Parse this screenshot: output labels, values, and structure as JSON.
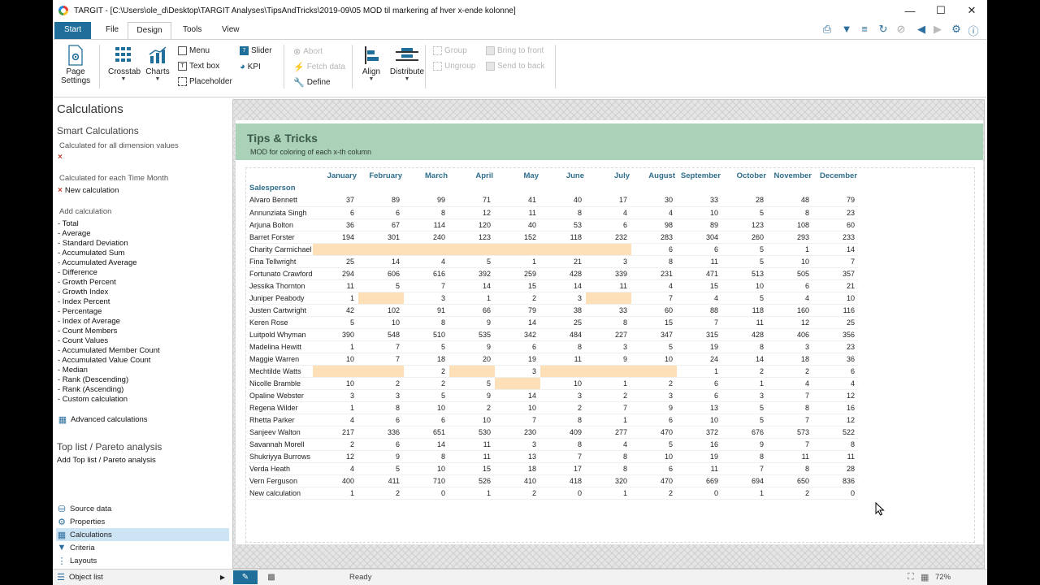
{
  "window": {
    "title": "TARGIT - [C:\\Users\\ole_d\\Desktop\\TARGIT Analyses\\TipsAndTricks\\2019-09\\05 MOD til markering af hver x-ende kolonne]"
  },
  "tabs": {
    "start": "Start",
    "file": "File",
    "design": "Design",
    "tools": "Tools",
    "view": "View"
  },
  "ribbon": {
    "page_settings": "Page Settings",
    "crosstab": "Crosstab",
    "charts": "Charts",
    "menu": "Menu",
    "text_box": "Text box",
    "placeholder": "Placeholder",
    "slider": "Slider",
    "kpi": "KPI",
    "abort": "Abort",
    "fetch_data": "Fetch data",
    "define": "Define",
    "align": "Align",
    "distribute": "Distribute",
    "group": "Group",
    "ungroup": "Ungroup",
    "bring_to_front": "Bring to front",
    "send_to_back": "Send to back"
  },
  "left_panel": {
    "heading": "Calculations",
    "smart_calculations": "Smart Calculations",
    "calc_all_dims": "Calculated for all dimension values",
    "calc_each_month": "Calculated for each Time Month",
    "new_calculation": "New calculation",
    "add_calculation": "Add calculation",
    "calc_items": [
      "- Total",
      "- Average",
      "- Standard Deviation",
      "- Accumulated Sum",
      "- Accumulated Average",
      "- Difference",
      "- Growth Percent",
      "- Growth Index",
      "- Index Percent",
      "- Percentage",
      "- Index of Average",
      "- Count Members",
      "- Count Values",
      "- Accumulated Member Count",
      "- Accumulated Value Count",
      "- Median",
      "- Rank (Descending)",
      "- Rank (Ascending)",
      "- Custom calculation"
    ],
    "advanced_calculations": "Advanced calculations",
    "toplist_heading": "Top list / Pareto analysis",
    "add_toplist": "Add Top list / Pareto analysis",
    "bottom_nav": [
      "Source data",
      "Properties",
      "Calculations",
      "Criteria",
      "Layouts"
    ],
    "object_list": "Object list"
  },
  "report": {
    "title": "Tips & Tricks",
    "subtitle": "MOD for coloring of each x-th column",
    "row_header": "Salesperson",
    "months": [
      "January",
      "February",
      "March",
      "April",
      "May",
      "June",
      "July",
      "August",
      "September",
      "October",
      "November",
      "December"
    ],
    "rows": [
      {
        "name": "Alvaro Bennett",
        "v": [
          "37",
          "89",
          "99",
          "71",
          "41",
          "40",
          "17",
          "30",
          "33",
          "28",
          "48",
          "79"
        ]
      },
      {
        "name": "Annunziata Singh",
        "v": [
          "6",
          "6",
          "8",
          "12",
          "11",
          "8",
          "4",
          "4",
          "10",
          "5",
          "8",
          "23"
        ]
      },
      {
        "name": "Arjuna Bolton",
        "v": [
          "36",
          "67",
          "114",
          "120",
          "40",
          "53",
          "6",
          "98",
          "89",
          "123",
          "108",
          "60"
        ]
      },
      {
        "name": "Barret Forster",
        "v": [
          "194",
          "301",
          "240",
          "123",
          "152",
          "118",
          "232",
          "283",
          "304",
          "260",
          "293",
          "233"
        ]
      },
      {
        "name": "Charity Carmichael",
        "v": [
          "",
          "",
          "",
          "",
          "",
          "",
          "",
          "6",
          "6",
          "5",
          "1",
          "14"
        ]
      },
      {
        "name": "Fina Tellwright",
        "v": [
          "25",
          "14",
          "4",
          "5",
          "1",
          "21",
          "3",
          "8",
          "11",
          "5",
          "10",
          "7"
        ]
      },
      {
        "name": "Fortunato Crawford",
        "v": [
          "294",
          "606",
          "616",
          "392",
          "259",
          "428",
          "339",
          "231",
          "471",
          "513",
          "505",
          "357"
        ]
      },
      {
        "name": "Jessika Thornton",
        "v": [
          "11",
          "5",
          "7",
          "14",
          "15",
          "14",
          "11",
          "4",
          "15",
          "10",
          "6",
          "21"
        ]
      },
      {
        "name": "Juniper Peabody",
        "v": [
          "1",
          "",
          "3",
          "1",
          "2",
          "3",
          "",
          "7",
          "4",
          "5",
          "4",
          "10"
        ]
      },
      {
        "name": "Justen Cartwright",
        "v": [
          "42",
          "102",
          "91",
          "66",
          "79",
          "38",
          "33",
          "60",
          "88",
          "118",
          "160",
          "116"
        ]
      },
      {
        "name": "Keren Rose",
        "v": [
          "5",
          "10",
          "8",
          "9",
          "14",
          "25",
          "8",
          "15",
          "7",
          "11",
          "12",
          "25"
        ]
      },
      {
        "name": "Luitpold Whyman",
        "v": [
          "390",
          "548",
          "510",
          "535",
          "342",
          "484",
          "227",
          "347",
          "315",
          "428",
          "406",
          "356"
        ]
      },
      {
        "name": "Madelina Hewitt",
        "v": [
          "1",
          "7",
          "5",
          "9",
          "6",
          "8",
          "3",
          "5",
          "19",
          "8",
          "3",
          "23"
        ]
      },
      {
        "name": "Maggie Warren",
        "v": [
          "10",
          "7",
          "18",
          "20",
          "19",
          "11",
          "9",
          "10",
          "24",
          "14",
          "18",
          "36"
        ]
      },
      {
        "name": "Mechtilde Watts",
        "v": [
          "",
          "",
          "2",
          "",
          "3",
          "",
          "",
          "",
          "1",
          "2",
          "2",
          "6"
        ]
      },
      {
        "name": "Nicolle Bramble",
        "v": [
          "10",
          "2",
          "2",
          "5",
          "",
          "10",
          "1",
          "2",
          "6",
          "1",
          "4",
          "4"
        ]
      },
      {
        "name": "Opaline Webster",
        "v": [
          "3",
          "3",
          "5",
          "9",
          "14",
          "3",
          "2",
          "3",
          "6",
          "3",
          "7",
          "12"
        ]
      },
      {
        "name": "Regena Wilder",
        "v": [
          "1",
          "8",
          "10",
          "2",
          "10",
          "2",
          "7",
          "9",
          "13",
          "5",
          "8",
          "16"
        ]
      },
      {
        "name": "Rhetta Parker",
        "v": [
          "4",
          "6",
          "6",
          "10",
          "7",
          "8",
          "1",
          "6",
          "10",
          "5",
          "7",
          "12"
        ]
      },
      {
        "name": "Sanjeev Walton",
        "v": [
          "217",
          "336",
          "651",
          "530",
          "230",
          "409",
          "277",
          "470",
          "372",
          "676",
          "573",
          "522"
        ]
      },
      {
        "name": "Savannah Morell",
        "v": [
          "2",
          "6",
          "14",
          "11",
          "3",
          "8",
          "4",
          "5",
          "16",
          "9",
          "7",
          "8"
        ]
      },
      {
        "name": "Shukriyya Burrows",
        "v": [
          "12",
          "9",
          "8",
          "11",
          "13",
          "7",
          "8",
          "10",
          "19",
          "8",
          "11",
          "11"
        ]
      },
      {
        "name": "Verda Heath",
        "v": [
          "4",
          "5",
          "10",
          "15",
          "18",
          "17",
          "8",
          "6",
          "11",
          "7",
          "8",
          "28"
        ]
      },
      {
        "name": "Vern Ferguson",
        "v": [
          "400",
          "411",
          "710",
          "526",
          "410",
          "418",
          "320",
          "470",
          "669",
          "694",
          "650",
          "836"
        ]
      },
      {
        "name": "New calculation",
        "v": [
          "1",
          "2",
          "0",
          "1",
          "2",
          "0",
          "1",
          "2",
          "0",
          "1",
          "2",
          "0"
        ]
      }
    ],
    "highlight": [
      [],
      [],
      [],
      [],
      [
        0,
        1,
        2,
        3,
        4,
        5,
        6
      ],
      [],
      [],
      [],
      [
        1,
        6
      ],
      [],
      [],
      [],
      [],
      [],
      [
        0,
        1,
        3,
        5,
        6,
        7
      ],
      [
        4
      ],
      [],
      [],
      [],
      [],
      [],
      [],
      [],
      [],
      []
    ]
  },
  "status": {
    "text": "Ready",
    "zoom": "72%"
  }
}
